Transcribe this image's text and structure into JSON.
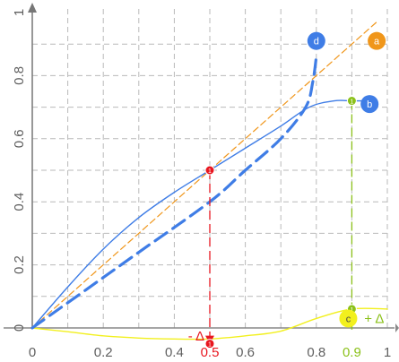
{
  "chart_data": {
    "type": "line",
    "xlim": [
      0,
      1
    ],
    "ylim": [
      -0.05,
      1
    ],
    "grid": true,
    "x_ticks": [
      {
        "value": 0,
        "label": "0"
      },
      {
        "value": 0.2,
        "label": "0.2"
      },
      {
        "value": 0.4,
        "label": "0.4"
      },
      {
        "value": 0.6,
        "label": "0.6"
      },
      {
        "value": 0.8,
        "label": "0.8"
      },
      {
        "value": 1,
        "label": "1"
      }
    ],
    "y_ticks": [
      {
        "value": 0,
        "label": "0"
      },
      {
        "value": 0.2,
        "label": "0.2"
      },
      {
        "value": 0.4,
        "label": "0.4"
      },
      {
        "value": 0.6,
        "label": "0.6"
      },
      {
        "value": 0.8,
        "label": "0.8"
      },
      {
        "value": 1,
        "label": "1"
      }
    ],
    "highlight_ticks": [
      {
        "value": 0.5,
        "label": "0.5",
        "color": "#e8161f"
      },
      {
        "value": 0.9,
        "label": "0.9",
        "color": "#8bc11a"
      }
    ],
    "series": [
      {
        "key": "a",
        "label": "a",
        "color": "#f0961a",
        "dash": "orange-dash",
        "points": [
          [
            0,
            0
          ],
          [
            0.1,
            0.1
          ],
          [
            0.2,
            0.2
          ],
          [
            0.3,
            0.3
          ],
          [
            0.4,
            0.4
          ],
          [
            0.5,
            0.5
          ],
          [
            0.6,
            0.6
          ],
          [
            0.7,
            0.7
          ],
          [
            0.8,
            0.8
          ],
          [
            0.97,
            0.97
          ]
        ],
        "badge_at": [
          0.97,
          0.91
        ]
      },
      {
        "key": "b",
        "label": "b",
        "color": "#3f7de6",
        "dash": "solid",
        "points": [
          [
            0,
            0
          ],
          [
            0.1,
            0.13
          ],
          [
            0.2,
            0.25
          ],
          [
            0.3,
            0.35
          ],
          [
            0.4,
            0.43
          ],
          [
            0.5,
            0.5
          ],
          [
            0.6,
            0.57
          ],
          [
            0.7,
            0.64
          ],
          [
            0.78,
            0.7
          ],
          [
            0.85,
            0.72
          ],
          [
            0.9,
            0.72
          ],
          [
            0.95,
            0.72
          ]
        ],
        "badge_at": [
          0.95,
          0.71
        ]
      },
      {
        "key": "c",
        "label": "c",
        "color": "#f2f01e",
        "dash": "solid",
        "points": [
          [
            0,
            0
          ],
          [
            0.1,
            -0.012
          ],
          [
            0.2,
            -0.025
          ],
          [
            0.3,
            -0.032
          ],
          [
            0.4,
            -0.035
          ],
          [
            0.5,
            -0.035
          ],
          [
            0.6,
            -0.025
          ],
          [
            0.7,
            -0.01
          ],
          [
            0.8,
            0.03
          ],
          [
            0.9,
            0.06
          ],
          [
            1,
            0.06
          ]
        ],
        "badge_at": [
          0.89,
          0.03
        ]
      },
      {
        "key": "d",
        "label": "d",
        "color": "#3f7de6",
        "dash": "long-dash",
        "points": [
          [
            0,
            0
          ],
          [
            0.15,
            0.12
          ],
          [
            0.3,
            0.24
          ],
          [
            0.5,
            0.4
          ],
          [
            0.6,
            0.5
          ],
          [
            0.7,
            0.6
          ],
          [
            0.77,
            0.7
          ],
          [
            0.79,
            0.78
          ],
          [
            0.8,
            0.86
          ]
        ],
        "badge_at": [
          0.8,
          0.91
        ]
      }
    ],
    "annotations": [
      {
        "type": "drop",
        "from": [
          0.5,
          0.5
        ],
        "to": [
          0.5,
          -0.05
        ],
        "color": "#e8161f",
        "label": "- Δ",
        "label_at": [
          0.485,
          -0.025
        ]
      },
      {
        "type": "drop",
        "from": [
          0.9,
          0.72
        ],
        "to": [
          0.9,
          0.06
        ],
        "color": "#8bc11a"
      },
      {
        "type": "rise",
        "from": [
          0.9,
          -0.005
        ],
        "to": [
          0.9,
          0.05
        ],
        "color": "#8bc11a",
        "label": "+ Δ",
        "label_at": [
          0.935,
          0.03
        ]
      }
    ]
  }
}
